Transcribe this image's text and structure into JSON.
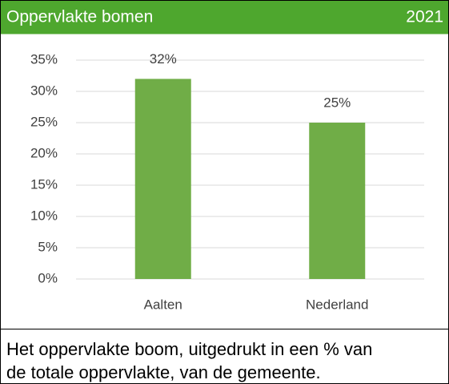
{
  "chart_data": {
    "type": "bar",
    "title": "Oppervlakte bomen",
    "subtitle": "2021",
    "categories": [
      "Aalten",
      "Nederland"
    ],
    "values": [
      32,
      25
    ],
    "value_labels": [
      "32%",
      "25%"
    ],
    "color": "#70ad47",
    "header_color": "#4ea72e",
    "ylim": [
      0,
      35
    ],
    "yticks": [
      {
        "value": 0,
        "label": "0%"
      },
      {
        "value": 5,
        "label": "5%"
      },
      {
        "value": 10,
        "label": "10%"
      },
      {
        "value": 15,
        "label": "15%"
      },
      {
        "value": 20,
        "label": "20%"
      },
      {
        "value": 25,
        "label": "25%"
      },
      {
        "value": 30,
        "label": "30%"
      },
      {
        "value": 35,
        "label": "35%"
      }
    ],
    "grid": true,
    "caption": [
      "Het oppervlakte boom, uitgedrukt in een % van",
      "de totale oppervlakte, van de gemeente."
    ]
  }
}
